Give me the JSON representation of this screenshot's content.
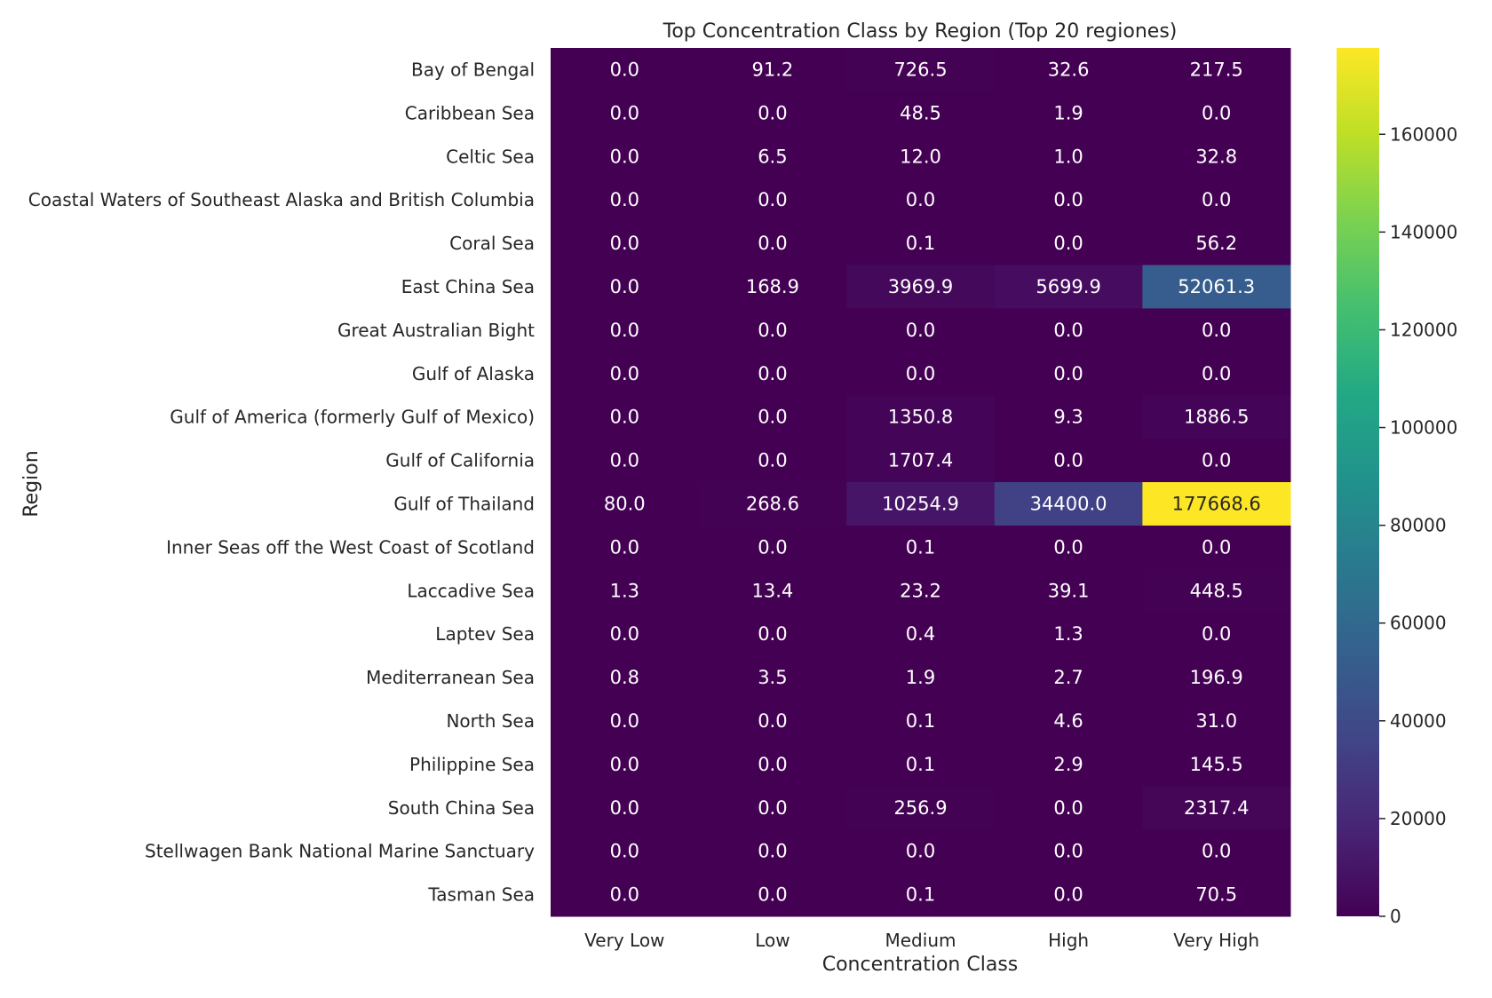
{
  "chart_data": {
    "type": "heatmap",
    "title": "Top Concentration Class by Region (Top 20 regiones)",
    "xlabel": "Concentration Class",
    "ylabel": "Region",
    "x": [
      "Very Low",
      "Low",
      "Medium",
      "High",
      "Very High"
    ],
    "y": [
      "Bay of Bengal",
      "Caribbean Sea",
      "Celtic Sea",
      "Coastal Waters of Southeast Alaska and British Columbia",
      "Coral Sea",
      "East China Sea",
      "Great Australian Bight",
      "Gulf of Alaska",
      "Gulf of America (formerly Gulf of Mexico)",
      "Gulf of California",
      "Gulf of Thailand",
      "Inner Seas off the West Coast of Scotland",
      "Laccadive Sea",
      "Laptev Sea",
      "Mediterranean Sea",
      "North Sea",
      "Philippine Sea",
      "South China Sea",
      "Stellwagen Bank National Marine Sanctuary",
      "Tasman Sea"
    ],
    "values": [
      [
        0.0,
        91.2,
        726.5,
        32.6,
        217.5
      ],
      [
        0.0,
        0.0,
        48.5,
        1.9,
        0.0
      ],
      [
        0.0,
        6.5,
        12.0,
        1.0,
        32.8
      ],
      [
        0.0,
        0.0,
        0.0,
        0.0,
        0.0
      ],
      [
        0.0,
        0.0,
        0.1,
        0.0,
        56.2
      ],
      [
        0.0,
        168.9,
        3969.9,
        5699.9,
        52061.3
      ],
      [
        0.0,
        0.0,
        0.0,
        0.0,
        0.0
      ],
      [
        0.0,
        0.0,
        0.0,
        0.0,
        0.0
      ],
      [
        0.0,
        0.0,
        1350.8,
        9.3,
        1886.5
      ],
      [
        0.0,
        0.0,
        1707.4,
        0.0,
        0.0
      ],
      [
        80.0,
        268.6,
        10254.9,
        34400.0,
        177668.6
      ],
      [
        0.0,
        0.0,
        0.1,
        0.0,
        0.0
      ],
      [
        1.3,
        13.4,
        23.2,
        39.1,
        448.5
      ],
      [
        0.0,
        0.0,
        0.4,
        1.3,
        0.0
      ],
      [
        0.8,
        3.5,
        1.9,
        2.7,
        196.9
      ],
      [
        0.0,
        0.0,
        0.1,
        4.6,
        31.0
      ],
      [
        0.0,
        0.0,
        0.1,
        2.9,
        145.5
      ],
      [
        0.0,
        0.0,
        256.9,
        0.0,
        2317.4
      ],
      [
        0.0,
        0.0,
        0.0,
        0.0,
        0.0
      ],
      [
        0.0,
        0.0,
        0.1,
        0.0,
        70.5
      ]
    ],
    "colormap": "viridis",
    "colorbar": {
      "range": [
        0,
        177668.6
      ],
      "ticks": [
        0,
        20000,
        40000,
        60000,
        80000,
        100000,
        120000,
        140000,
        160000
      ]
    },
    "annotation_colors": {
      "dark_cell": "#ffffff",
      "light_cell": "#262626"
    },
    "grid": false
  }
}
